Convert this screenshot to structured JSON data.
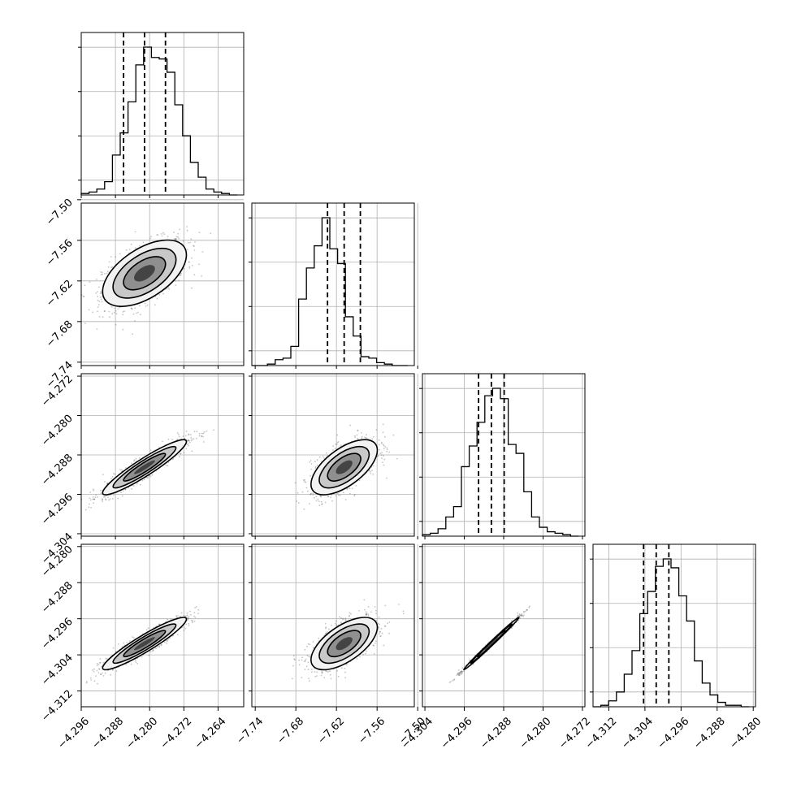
{
  "chart_data": {
    "type": "corner",
    "grid": true,
    "n_params": 4,
    "quantile_lines": "dashed: 16th, 50th, 84th percentile",
    "contour_levels": 3,
    "colors": {
      "line": "#000000",
      "grid": "#b0b0b0",
      "scatter": "#555555"
    },
    "params": [
      {
        "index": 0,
        "range": [
          -4.296,
          -4.258
        ],
        "ticks": [
          -4.296,
          -4.288,
          -4.28,
          -4.272,
          -4.264
        ],
        "tick_labels": [
          "−4.296",
          "−4.288",
          "−4.280",
          "−4.272",
          "−4.264"
        ],
        "median": -4.2812,
        "q16": -4.2861,
        "q84": -4.2763,
        "sigma": 0.0049
      },
      {
        "index": 1,
        "range": [
          -7.745,
          -7.505
        ],
        "ticks": [
          -7.74,
          -7.68,
          -7.62,
          -7.56,
          -7.5
        ],
        "tick_labels": [
          "−7.74",
          "−7.68",
          "−7.62",
          "−7.56",
          "−7.50"
        ],
        "median": -7.6086,
        "q16": -7.6332,
        "q84": -7.5847,
        "sigma": 0.0245
      },
      {
        "index": 2,
        "range": [
          -4.3045,
          -4.2715
        ],
        "ticks": [
          -4.304,
          -4.296,
          -4.288,
          -4.28,
          -4.272
        ],
        "tick_labels": [
          "−4.304",
          "−4.296",
          "−4.288",
          "−4.280",
          "−4.272"
        ],
        "median": -4.2905,
        "q16": -4.2931,
        "q84": -4.2879,
        "sigma": 0.0028
      },
      {
        "index": 3,
        "range": [
          -4.3155,
          -4.2795
        ],
        "ticks": [
          -4.312,
          -4.304,
          -4.296,
          -4.288,
          -4.28
        ],
        "tick_labels": [
          "−4.312",
          "−4.304",
          "−4.296",
          "−4.288",
          "−4.280"
        ],
        "median": -4.3015,
        "q16": -4.3043,
        "q84": -4.2987,
        "sigma": 0.0029
      }
    ],
    "correlations": [
      {
        "row": 1,
        "col": 0,
        "rho": 0.55
      },
      {
        "row": 2,
        "col": 0,
        "rho": 0.93
      },
      {
        "row": 2,
        "col": 1,
        "rho": 0.62
      },
      {
        "row": 3,
        "col": 0,
        "rho": 0.93
      },
      {
        "row": 3,
        "col": 1,
        "rho": 0.62
      },
      {
        "row": 3,
        "col": 2,
        "rho": 0.995
      }
    ],
    "histograms": [
      {
        "param": 0,
        "bins": 20,
        "counts": [
          1,
          2,
          4,
          9,
          27,
          42,
          63,
          88,
          100,
          93,
          92,
          83,
          61,
          40,
          22,
          12,
          4,
          2,
          1,
          0
        ]
      },
      {
        "param": 1,
        "bins": 20,
        "counts": [
          0,
          0,
          1,
          4,
          5,
          13,
          45,
          66,
          81,
          100,
          79,
          69,
          33,
          20,
          6,
          5,
          2,
          1,
          0,
          0
        ]
      },
      {
        "param": 2,
        "bins": 20,
        "counts": [
          1,
          2,
          5,
          13,
          20,
          47,
          61,
          77,
          95,
          100,
          93,
          62,
          56,
          30,
          13,
          6,
          3,
          2,
          1,
          0
        ]
      },
      {
        "param": 3,
        "bins": 20,
        "counts": [
          0,
          1,
          4,
          10,
          22,
          38,
          63,
          78,
          95,
          100,
          94,
          75,
          58,
          31,
          16,
          8,
          3,
          1,
          1,
          0
        ]
      }
    ]
  }
}
